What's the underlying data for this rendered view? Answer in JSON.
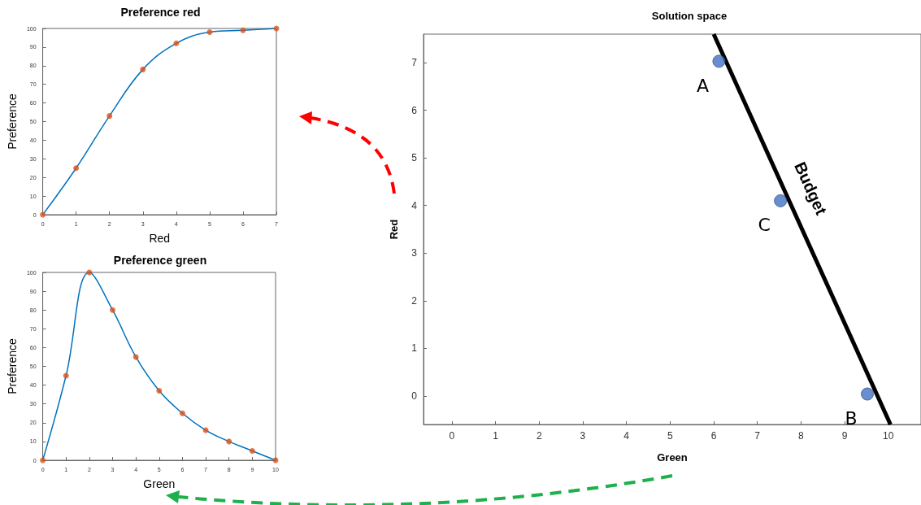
{
  "chart_data": [
    {
      "type": "line",
      "title": "Preference red",
      "xlabel": "Red",
      "ylabel": "Preference",
      "xlim": [
        0,
        7
      ],
      "xticks": [
        0,
        1,
        2,
        3,
        4,
        5,
        6,
        7
      ],
      "ylim": [
        0,
        100
      ],
      "yticks": [
        0,
        10,
        20,
        30,
        40,
        50,
        60,
        70,
        80,
        90,
        100
      ],
      "x": [
        0,
        1,
        2,
        3,
        4,
        5,
        6,
        7
      ],
      "series": [
        {
          "color": "#0072bd",
          "marker": "none",
          "values": [
            0,
            25,
            53,
            78,
            92,
            98,
            99,
            100
          ]
        },
        {
          "type": "scatter",
          "marker": "circle",
          "color": "#d95319",
          "values": [
            0,
            25,
            53,
            78,
            92,
            98,
            99,
            100
          ]
        }
      ]
    },
    {
      "type": "line",
      "title": "Preference green",
      "xlabel": "Green",
      "ylabel": "Preference",
      "xlim": [
        0,
        10
      ],
      "xticks": [
        0,
        1,
        2,
        3,
        4,
        5,
        6,
        7,
        8,
        9,
        10
      ],
      "ylim": [
        0,
        100
      ],
      "yticks": [
        0,
        10,
        20,
        30,
        40,
        50,
        60,
        70,
        80,
        90,
        100
      ],
      "x": [
        0,
        1,
        2,
        3,
        4,
        5,
        6,
        7,
        8,
        9,
        10
      ],
      "series": [
        {
          "color": "#0072bd",
          "marker": "none",
          "values": [
            0,
            45,
            100,
            80,
            55,
            37,
            25,
            16,
            10,
            5,
            0
          ]
        },
        {
          "type": "scatter",
          "marker": "circle",
          "color": "#d95319",
          "values": [
            0,
            45,
            100,
            80,
            55,
            37,
            25,
            16,
            10,
            5,
            0
          ]
        }
      ]
    },
    {
      "type": "scatter",
      "title": "Solution space",
      "xlabel": "Green",
      "ylabel": "Red",
      "xlim": [
        -0.65,
        10.75
      ],
      "xticks": [
        0,
        1,
        2,
        3,
        4,
        5,
        6,
        7,
        8,
        9,
        10
      ],
      "ylim": [
        -0.6,
        7.6
      ],
      "yticks": [
        0,
        1,
        2,
        3,
        4,
        5,
        6,
        7
      ],
      "series": [
        {
          "marker": "circle",
          "color": "#4472c4",
          "x": [
            6.12,
            7.53,
            9.52
          ],
          "values": [
            7.03,
            4.1,
            0.04
          ]
        },
        {
          "type": "line",
          "marker": "none",
          "name": "Budget",
          "color": "#000000",
          "x": [
            6,
            10.05
          ],
          "values": [
            7.6,
            -0.6
          ]
        }
      ],
      "annotations": [
        {
          "text": "A",
          "x": 6.12,
          "y": 7.03
        },
        {
          "text": "C",
          "x": 7.53,
          "y": 4.1
        },
        {
          "text": "B",
          "x": 9.52,
          "y": 0.04
        }
      ]
    }
  ]
}
